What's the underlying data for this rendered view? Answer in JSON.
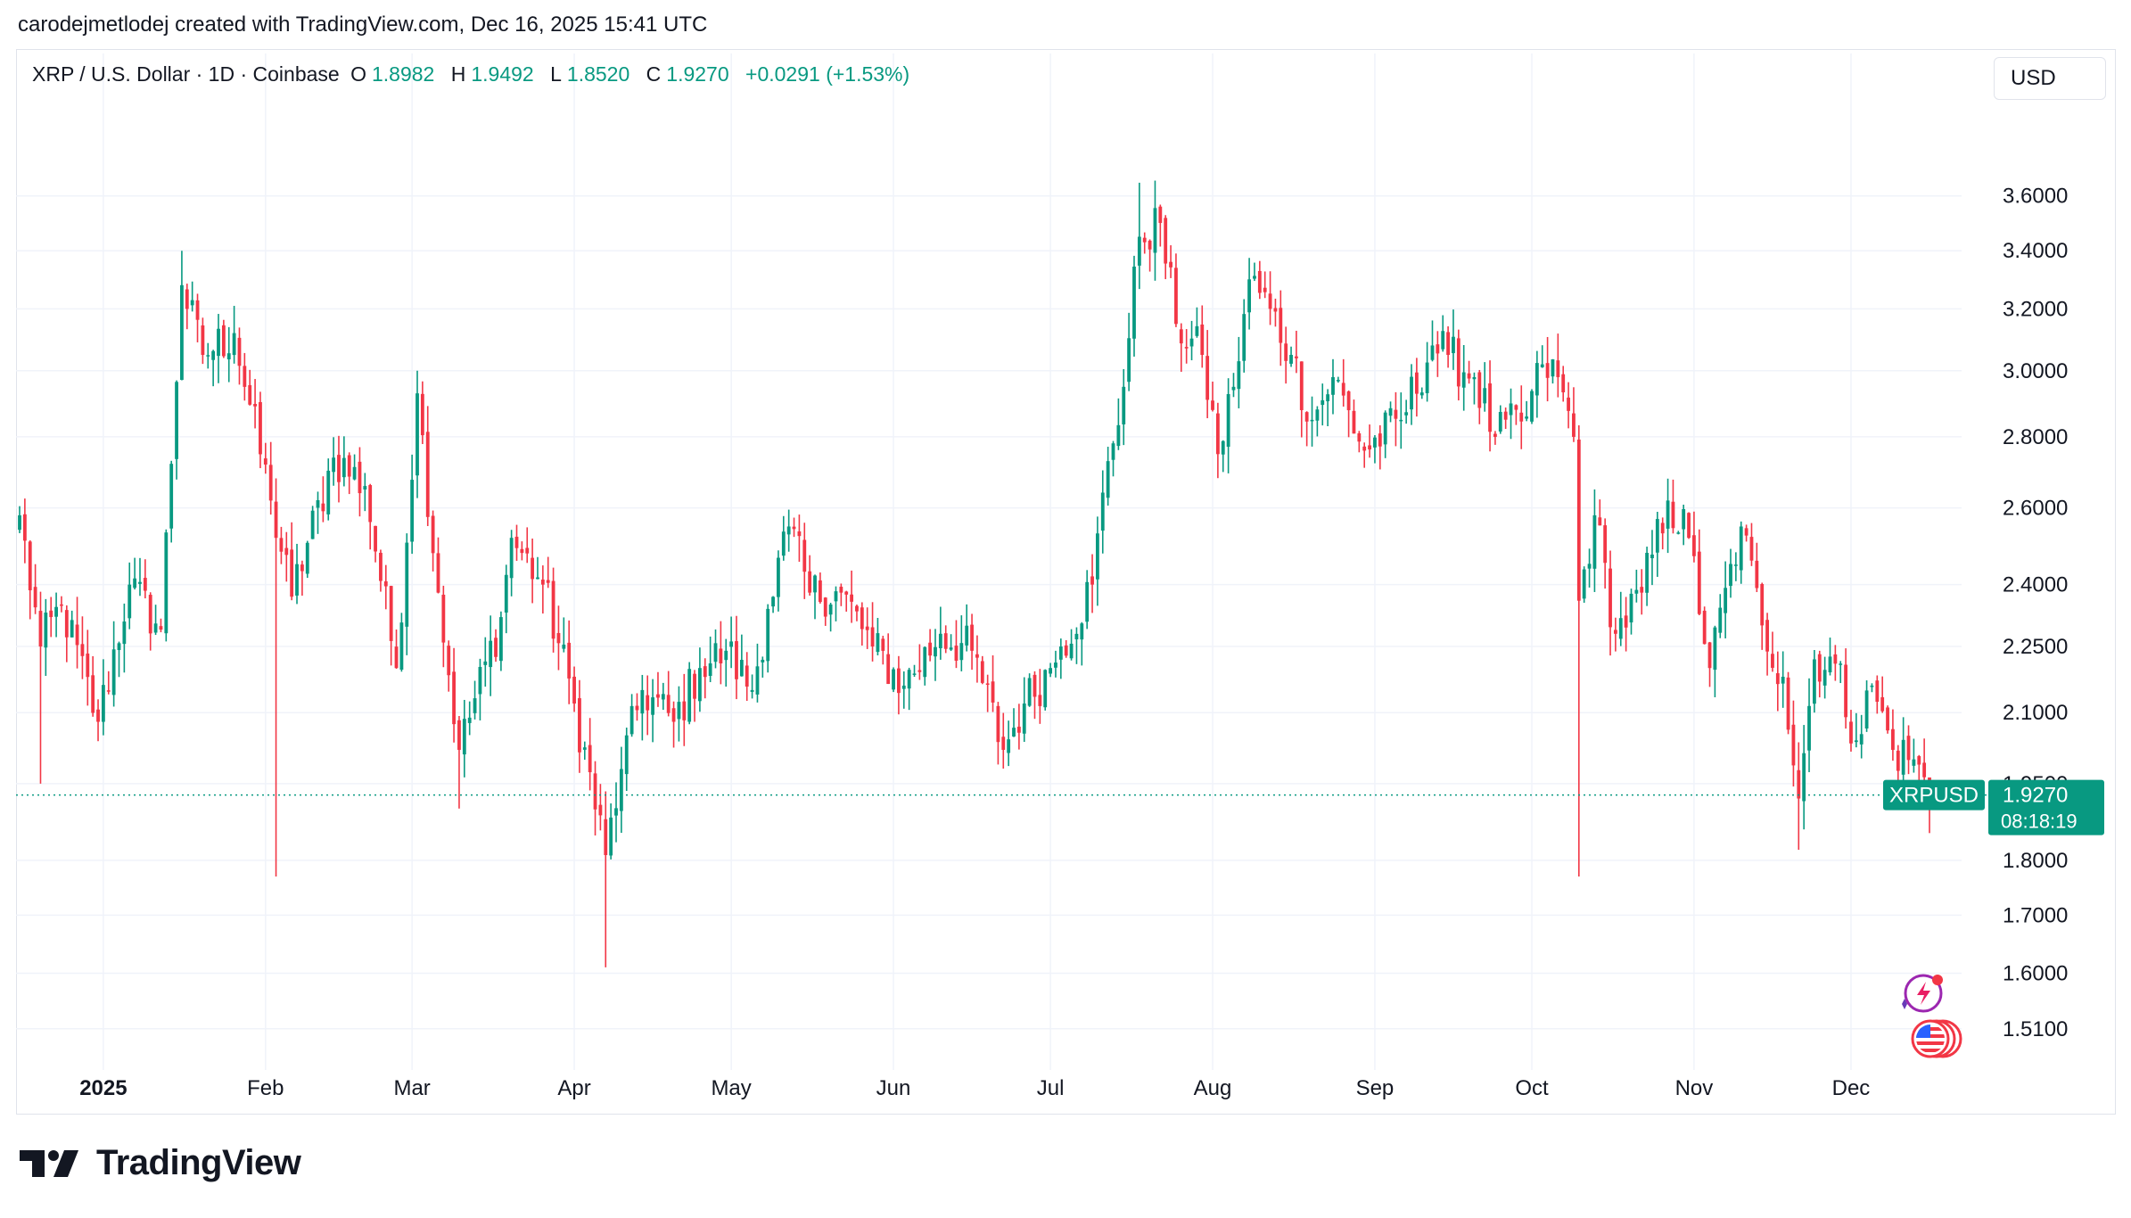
{
  "header": {
    "attribution": "carodejmetlodej created with TradingView.com, Dec 16, 2025 15:41 UTC"
  },
  "legend": {
    "symbol": "XRP / U.S. Dollar · 1D · Coinbase",
    "open_label": "O",
    "open": "1.8982",
    "high_label": "H",
    "high": "1.9492",
    "low_label": "L",
    "low": "1.8520",
    "close_label": "C",
    "close": "1.9270",
    "change": "+0.0291 (+1.53%)"
  },
  "currency_button": "USD",
  "price_badge": {
    "ticker": "XRPUSD",
    "price": "1.9270",
    "countdown": "08:18:19"
  },
  "footer": {
    "brand": "TradingView"
  },
  "colors": {
    "up": "#089981",
    "down": "#f23645",
    "grid": "#f0f3fa",
    "text": "#131722",
    "accent_badge": "#089981",
    "flash_icon": "#9c27b0",
    "flag_icon": "#f23645"
  },
  "icons": [
    "flash-icon",
    "us-flag-icon"
  ],
  "chart_data": {
    "type": "candlestick",
    "title": "XRP / U.S. Dollar · 1D · Coinbase",
    "y_scale": "log",
    "ylim": [
      1.46,
      3.95
    ],
    "y_ticks": [
      "3.6000",
      "3.4000",
      "3.2000",
      "3.0000",
      "2.8000",
      "2.6000",
      "2.4000",
      "2.2500",
      "2.1000",
      "1.9500",
      "1.8000",
      "1.7000",
      "1.6000",
      "1.5100"
    ],
    "x_range": [
      "2024-12-16",
      "2025-12-16"
    ],
    "x_labels": [
      {
        "label": "2025",
        "date": "2025-01-01",
        "bold": true
      },
      {
        "label": "Feb",
        "date": "2025-02-01"
      },
      {
        "label": "Mar",
        "date": "2025-03-01"
      },
      {
        "label": "Apr",
        "date": "2025-04-01"
      },
      {
        "label": "May",
        "date": "2025-05-01"
      },
      {
        "label": "Jun",
        "date": "2025-06-01"
      },
      {
        "label": "Jul",
        "date": "2025-07-01"
      },
      {
        "label": "Aug",
        "date": "2025-08-01"
      },
      {
        "label": "Sep",
        "date": "2025-09-01"
      },
      {
        "label": "Oct",
        "date": "2025-10-01"
      },
      {
        "label": "Nov",
        "date": "2025-11-01"
      },
      {
        "label": "Dec",
        "date": "2025-12-01"
      }
    ],
    "last_price": 1.927,
    "close_anchors": [
      [
        "2024-12-16",
        2.58
      ],
      [
        "2024-12-20",
        2.25
      ],
      [
        "2024-12-24",
        2.35
      ],
      [
        "2024-12-31",
        2.08
      ],
      [
        "2025-01-06",
        2.4
      ],
      [
        "2025-01-12",
        2.29
      ],
      [
        "2025-01-16",
        3.28
      ],
      [
        "2025-01-20",
        3.05
      ],
      [
        "2025-01-26",
        3.12
      ],
      [
        "2025-02-02",
        2.62
      ],
      [
        "2025-02-06",
        2.37
      ],
      [
        "2025-02-14",
        2.74
      ],
      [
        "2025-02-20",
        2.66
      ],
      [
        "2025-02-26",
        2.2
      ],
      [
        "2025-03-02",
        2.93
      ],
      [
        "2025-03-06",
        2.38
      ],
      [
        "2025-03-10",
        2.02
      ],
      [
        "2025-03-18",
        2.32
      ],
      [
        "2025-03-20",
        2.52
      ],
      [
        "2025-03-26",
        2.4
      ],
      [
        "2025-04-01",
        2.12
      ],
      [
        "2025-04-07",
        1.81
      ],
      [
        "2025-04-10",
        1.98
      ],
      [
        "2025-04-14",
        2.15
      ],
      [
        "2025-04-20",
        2.08
      ],
      [
        "2025-04-25",
        2.2
      ],
      [
        "2025-04-30",
        2.24
      ],
      [
        "2025-05-05",
        2.15
      ],
      [
        "2025-05-08",
        2.34
      ],
      [
        "2025-05-12",
        2.55
      ],
      [
        "2025-05-16",
        2.38
      ],
      [
        "2025-05-22",
        2.38
      ],
      [
        "2025-05-28",
        2.25
      ],
      [
        "2025-06-03",
        2.16
      ],
      [
        "2025-06-10",
        2.28
      ],
      [
        "2025-06-16",
        2.24
      ],
      [
        "2025-06-22",
        2.02
      ],
      [
        "2025-06-26",
        2.12
      ],
      [
        "2025-07-01",
        2.2
      ],
      [
        "2025-07-03",
        2.25
      ],
      [
        "2025-07-09",
        2.4
      ],
      [
        "2025-07-12",
        2.73
      ],
      [
        "2025-07-15",
        2.95
      ],
      [
        "2025-07-18",
        3.45
      ],
      [
        "2025-07-22",
        3.5
      ],
      [
        "2025-07-25",
        3.15
      ],
      [
        "2025-07-30",
        3.05
      ],
      [
        "2025-08-02",
        2.75
      ],
      [
        "2025-08-05",
        2.95
      ],
      [
        "2025-08-08",
        3.3
      ],
      [
        "2025-08-12",
        3.2
      ],
      [
        "2025-08-16",
        3.05
      ],
      [
        "2025-08-20",
        2.85
      ],
      [
        "2025-08-24",
        2.98
      ],
      [
        "2025-08-30",
        2.76
      ],
      [
        "2025-09-06",
        2.85
      ],
      [
        "2025-09-12",
        3.08
      ],
      [
        "2025-09-15",
        3.05
      ],
      [
        "2025-09-20",
        2.98
      ],
      [
        "2025-09-24",
        2.8
      ],
      [
        "2025-09-30",
        2.86
      ],
      [
        "2025-10-03",
        3.02
      ],
      [
        "2025-10-06",
        2.98
      ],
      [
        "2025-10-09",
        2.8
      ],
      [
        "2025-10-10",
        2.36
      ],
      [
        "2025-10-13",
        2.58
      ],
      [
        "2025-10-17",
        2.28
      ],
      [
        "2025-10-22",
        2.38
      ],
      [
        "2025-10-27",
        2.62
      ],
      [
        "2025-10-31",
        2.52
      ],
      [
        "2025-11-04",
        2.2
      ],
      [
        "2025-11-10",
        2.55
      ],
      [
        "2025-11-14",
        2.3
      ],
      [
        "2025-11-18",
        2.18
      ],
      [
        "2025-11-21",
        1.92
      ],
      [
        "2025-11-24",
        2.22
      ],
      [
        "2025-11-28",
        2.21
      ],
      [
        "2025-12-02",
        2.04
      ],
      [
        "2025-12-05",
        2.16
      ],
      [
        "2025-12-09",
        2.02
      ],
      [
        "2025-12-13",
        2.0
      ],
      [
        "2025-12-16",
        1.927
      ]
    ],
    "wick_extremes": [
      [
        "2024-12-20",
        1.95
      ],
      [
        "2025-01-16",
        3.4
      ],
      [
        "2025-02-03",
        1.77
      ],
      [
        "2025-03-02",
        3.0
      ],
      [
        "2025-03-10",
        1.9
      ],
      [
        "2025-04-07",
        1.61
      ],
      [
        "2025-07-18",
        3.65
      ],
      [
        "2025-10-10",
        1.77
      ],
      [
        "2025-11-21",
        1.82
      ],
      [
        "2025-12-16",
        1.852
      ]
    ]
  }
}
